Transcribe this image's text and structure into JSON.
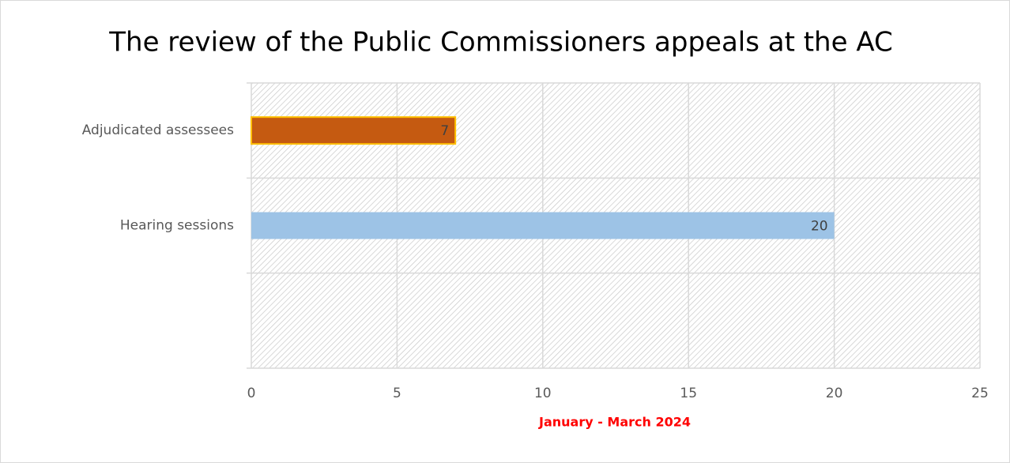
{
  "chart_data": {
    "type": "barh",
    "title": "The review of the Public Commissioners appeals at the AC",
    "categories": [
      "Adjudicated assessees",
      "Hearing sessions",
      null
    ],
    "values": [
      7,
      20,
      null
    ],
    "colors": [
      "#c55a11",
      "#9dc3e6",
      null
    ],
    "edgecolors": [
      "#ffc000",
      null,
      null
    ],
    "xlabel": "January - March 2024",
    "xlim": [
      0,
      25
    ],
    "xticks": [
      0,
      5,
      10,
      15,
      20,
      25
    ],
    "grid": true
  }
}
